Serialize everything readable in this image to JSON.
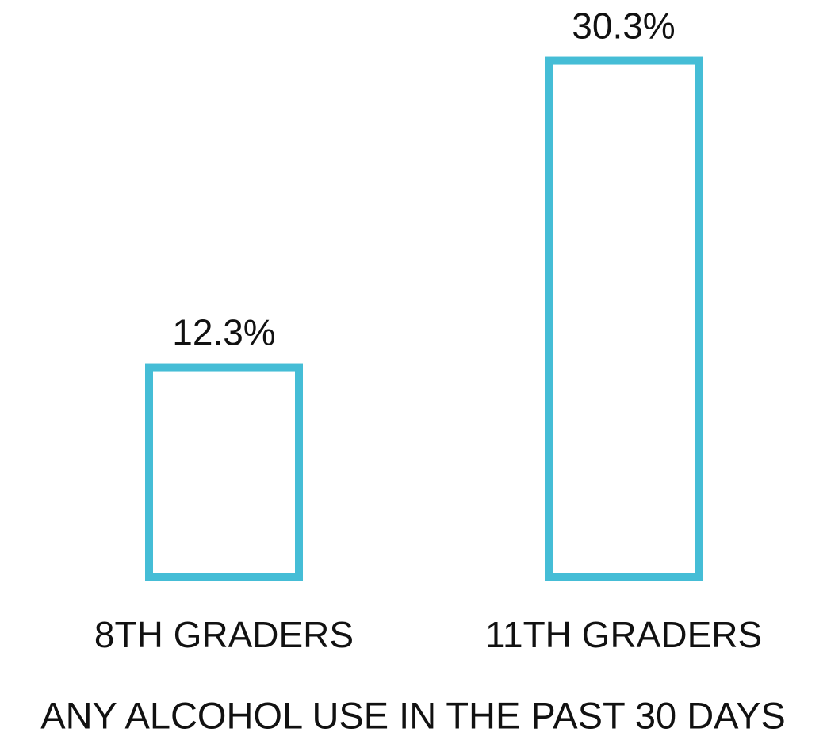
{
  "chart_data": {
    "type": "bar",
    "title": "ANY ALCOHOL USE IN THE PAST 30 DAYS",
    "categories": [
      "8TH GRADERS",
      "11TH GRADERS"
    ],
    "values": [
      12.3,
      30.3
    ],
    "value_labels": [
      "12.3%",
      "30.3%"
    ],
    "color": "#45bdd6",
    "grid": false
  }
}
